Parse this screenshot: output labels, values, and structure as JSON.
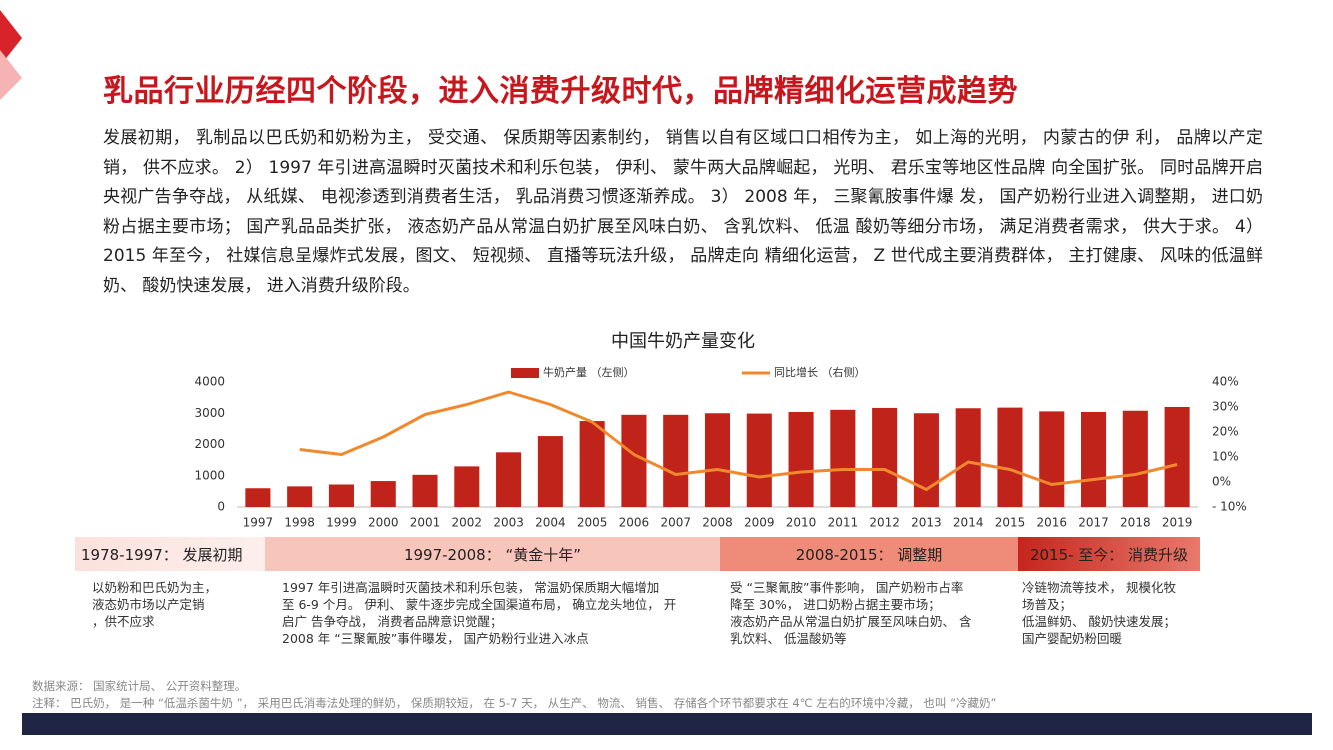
{
  "title": "乳品行业历经四个阶段，进入消费升级时代，品牌精细化运营成趋势",
  "paragraph": "发展初期， 乳制品以巴氏奶和奶粉为主， 受交通、 保质期等因素制约， 销售以自有区域口口相传为主， 如上海的光明， 内蒙古的伊 利， 品牌以产定销， 供不应求。 2） 1997 年引进高温瞬时灭菌技术和利乐包装， 伊利、 蒙牛两大品牌崛起， 光明、 君乐宝等地区性品牌 向全国扩张。 同时品牌开启央视广告争夺战， 从纸媒、 电视渗透到消费者生活， 乳品消费习惯逐渐养成。 3） 2008 年， 三聚氰胺事件爆 发， 国产奶粉行业进入调整期， 进口奶粉占据主要市场； 国产乳品品类扩张， 液态奶产品从常温白奶扩展至风味白奶、 含乳饮料、 低温 酸奶等细分市场， 满足消费者需求， 供大于求。 4） 2015 年至今， 社媒信息呈爆炸式发展，图文、 短视频、 直播等玩法升级， 品牌走向 精细化运营， Z 世代成主要消费群体， 主打健康、 风味的低温鲜奶、 酸奶快速发展， 进入消费升级阶段。",
  "chart_data": {
    "type": "bar",
    "title": "中国牛奶产量变化",
    "categories": [
      "1997",
      "1998",
      "1999",
      "2000",
      "2001",
      "2002",
      "2003",
      "2004",
      "2005",
      "2006",
      "2007",
      "2008",
      "2009",
      "2010",
      "2011",
      "2012",
      "2013",
      "2014",
      "2015",
      "2016",
      "2017",
      "2018",
      "2019"
    ],
    "series": [
      {
        "name": "牛奶产量 （左侧）",
        "type": "bar",
        "color": "#c0231a",
        "values": [
          600,
          660,
          720,
          830,
          1030,
          1300,
          1750,
          2270,
          2750,
          2950,
          2950,
          3000,
          2990,
          3040,
          3110,
          3170,
          3000,
          3160,
          3180,
          3060,
          3040,
          3080,
          3200
        ]
      },
      {
        "name": "同比增长 （右侧）",
        "type": "line",
        "axis": "y2",
        "color": "#f0892d",
        "values": [
          null,
          13,
          11,
          18,
          27,
          31,
          36,
          31,
          24,
          11,
          3,
          5,
          2,
          4,
          5,
          5,
          -3,
          8,
          5,
          -1,
          1,
          3,
          7
        ]
      }
    ],
    "ylim": [
      0,
      4000
    ],
    "yticks": [
      0,
      1000,
      2000,
      3000,
      4000
    ],
    "y2lim": [
      -10,
      40
    ],
    "y2ticks": [
      {
        "value": -10,
        "label": "- 10%"
      },
      {
        "value": 0,
        "label": "0%"
      },
      {
        "value": 10,
        "label": "10%"
      },
      {
        "value": 20,
        "label": "20%"
      },
      {
        "value": 30,
        "label": "30%"
      },
      {
        "value": 40,
        "label": "40%"
      }
    ],
    "grid": false,
    "legend": "top"
  },
  "stages": [
    {
      "label": "1978-1997： 发展初期",
      "desc": [
        "以奶粉和巴氏奶为主，",
        "液态奶市场以产定销",
        "，供不应求"
      ]
    },
    {
      "label": "1997-2008： “黄金十年”",
      "desc": [
        "1997 年引进高温瞬时灭菌技术和利乐包装， 常温奶保质期大幅增加",
        "至 6-9 个月。 伊利、 蒙牛逐步完成全国渠道布局， 确立龙头地位， 开",
        "启广 告争夺战， 消费者品牌意识觉醒；",
        "2008 年 “三聚氰胺”事件曝发， 国产奶粉行业进入冰点"
      ]
    },
    {
      "label": "2008-2015： 调整期",
      "desc": [
        "受 “三聚氰胺”事件影响， 国产奶粉市占率",
        "降至 30%， 进口奶粉占据主要市场；",
        "液态奶产品从常温白奶扩展至风味白奶、 含",
        "乳饮料、 低温酸奶等"
      ]
    },
    {
      "label": "2015- 至今： 消费升级",
      "desc": [
        "冷链物流等技术， 规模化牧",
        "场普及；",
        "低温鲜奶、 酸奶快速发展；",
        "国产婴配奶粉回暖"
      ]
    }
  ],
  "notes": [
    "数据来源： 国家统计局、 公开资料整理。",
    "注释： 巴氏奶， 是一种 “低温杀菌牛奶 ”， 采用巴氏消毒法处理的鲜奶， 保质期较短， 在 5-7 天， 从生产、 物流、 销售、 存储各个环节都要求在 4℃ 左右的环境中冷藏， 也叫 “冷藏奶”"
  ]
}
